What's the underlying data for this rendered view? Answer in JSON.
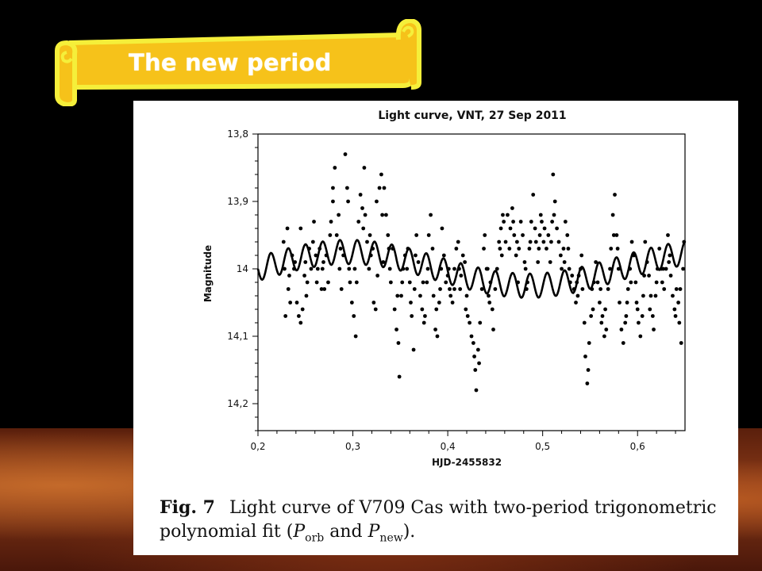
{
  "slide": {
    "title": "The new period"
  },
  "figure": {
    "caption_label": "Fig. 7",
    "caption_line1": "Light curve of V709 Cas with two-period trigonometric",
    "caption_line2_pre": "polynomial fit (",
    "caption_porb": "P",
    "caption_porb_sub": "orb",
    "caption_and": " and ",
    "caption_pnew": "P",
    "caption_pnew_sub": "new",
    "caption_end": ")."
  },
  "chart_data": {
    "type": "scatter",
    "title": "Light curve, VNT, 27 Sep 2011",
    "xlabel": "HJD-2455832",
    "ylabel": "Magnitude",
    "xlim": [
      0.2,
      0.65
    ],
    "ylim": [
      13.8,
      14.24
    ],
    "y_inverted": true,
    "x_ticks": [
      "0,2",
      "0,3",
      "0,4",
      "0,5",
      "0,6"
    ],
    "x_tick_values": [
      0.2,
      0.3,
      0.4,
      0.5,
      0.6
    ],
    "y_ticks": [
      "13,8",
      "13,9",
      "14",
      "14,1",
      "14,2"
    ],
    "y_tick_values": [
      13.8,
      13.9,
      14.0,
      14.1,
      14.2
    ],
    "grid": false,
    "legend": "none",
    "marker_color": "#000000",
    "series": [
      {
        "type": "scatter",
        "values_xy": [
          [
            0.227,
            13.96
          ],
          [
            0.228,
            14.0
          ],
          [
            0.229,
            14.07
          ],
          [
            0.231,
            13.94
          ],
          [
            0.232,
            14.03
          ],
          [
            0.234,
            14.05
          ],
          [
            0.236,
            13.98
          ],
          [
            0.238,
            14.0
          ],
          [
            0.239,
            13.99
          ],
          [
            0.241,
            14.05
          ],
          [
            0.243,
            14.07
          ],
          [
            0.245,
            14.08
          ],
          [
            0.247,
            14.06
          ],
          [
            0.249,
            14.01
          ],
          [
            0.25,
            13.99
          ],
          [
            0.252,
            14.02
          ],
          [
            0.254,
            13.97
          ],
          [
            0.256,
            14.0
          ],
          [
            0.258,
            13.96
          ],
          [
            0.259,
            13.93
          ],
          [
            0.261,
            13.98
          ],
          [
            0.263,
            14.0
          ],
          [
            0.265,
            13.97
          ],
          [
            0.267,
            14.03
          ],
          [
            0.268,
            14.0
          ],
          [
            0.27,
            14.03
          ],
          [
            0.272,
            13.98
          ],
          [
            0.274,
            14.02
          ],
          [
            0.276,
            13.95
          ],
          [
            0.277,
            13.93
          ],
          [
            0.279,
            13.9
          ],
          [
            0.281,
            13.85
          ],
          [
            0.283,
            13.95
          ],
          [
            0.285,
            13.92
          ],
          [
            0.286,
            14.0
          ],
          [
            0.288,
            14.03
          ],
          [
            0.29,
            13.98
          ],
          [
            0.292,
            13.83
          ],
          [
            0.294,
            13.88
          ],
          [
            0.295,
            13.9
          ],
          [
            0.297,
            14.02
          ],
          [
            0.299,
            14.05
          ],
          [
            0.301,
            14.07
          ],
          [
            0.303,
            14.1
          ],
          [
            0.304,
            14.02
          ],
          [
            0.306,
            13.93
          ],
          [
            0.308,
            13.89
          ],
          [
            0.31,
            13.91
          ],
          [
            0.312,
            13.85
          ],
          [
            0.313,
            13.92
          ],
          [
            0.315,
            13.96
          ],
          [
            0.317,
            14.0
          ],
          [
            0.319,
            13.98
          ],
          [
            0.321,
            13.97
          ],
          [
            0.322,
            14.05
          ],
          [
            0.324,
            14.06
          ],
          [
            0.326,
            14.01
          ],
          [
            0.328,
            13.88
          ],
          [
            0.33,
            13.86
          ],
          [
            0.331,
            13.92
          ],
          [
            0.333,
            13.88
          ],
          [
            0.335,
            13.92
          ],
          [
            0.337,
            13.95
          ],
          [
            0.339,
            14.0
          ],
          [
            0.34,
            14.02
          ],
          [
            0.342,
            13.97
          ],
          [
            0.344,
            14.06
          ],
          [
            0.346,
            14.09
          ],
          [
            0.348,
            14.11
          ],
          [
            0.349,
            14.16
          ],
          [
            0.351,
            14.04
          ],
          [
            0.353,
            14.0
          ],
          [
            0.355,
            13.98
          ],
          [
            0.357,
            14.0
          ],
          [
            0.358,
            13.97
          ],
          [
            0.36,
            14.02
          ],
          [
            0.362,
            14.07
          ],
          [
            0.364,
            14.12
          ],
          [
            0.366,
            13.98
          ],
          [
            0.367,
            13.95
          ],
          [
            0.369,
            13.99
          ],
          [
            0.371,
            14.04
          ],
          [
            0.373,
            14.06
          ],
          [
            0.375,
            14.08
          ],
          [
            0.376,
            14.07
          ],
          [
            0.378,
            14.02
          ],
          [
            0.38,
            13.95
          ],
          [
            0.382,
            13.92
          ],
          [
            0.384,
            13.97
          ],
          [
            0.385,
            14.04
          ],
          [
            0.387,
            14.09
          ],
          [
            0.389,
            14.1
          ],
          [
            0.391,
            14.05
          ],
          [
            0.393,
            14.0
          ],
          [
            0.394,
            13.94
          ],
          [
            0.396,
            13.98
          ],
          [
            0.398,
            14.02
          ],
          [
            0.4,
            14.01
          ],
          [
            0.402,
            14.03
          ],
          [
            0.403,
            14.04
          ],
          [
            0.405,
            14.05
          ],
          [
            0.407,
            14.03
          ],
          [
            0.409,
            13.97
          ],
          [
            0.411,
            13.96
          ],
          [
            0.412,
            14.0
          ],
          [
            0.414,
            14.01
          ],
          [
            0.416,
            13.98
          ],
          [
            0.418,
            13.99
          ],
          [
            0.42,
            14.04
          ],
          [
            0.421,
            14.07
          ],
          [
            0.423,
            14.08
          ],
          [
            0.425,
            14.1
          ],
          [
            0.427,
            14.11
          ],
          [
            0.429,
            14.15
          ],
          [
            0.43,
            14.18
          ],
          [
            0.432,
            14.12
          ],
          [
            0.434,
            14.08
          ],
          [
            0.436,
            14.03
          ],
          [
            0.438,
            13.97
          ],
          [
            0.439,
            13.95
          ],
          [
            0.441,
            14.0
          ],
          [
            0.443,
            14.04
          ],
          [
            0.445,
            14.02
          ],
          [
            0.447,
            14.06
          ],
          [
            0.448,
            14.09
          ],
          [
            0.45,
            14.03
          ],
          [
            0.452,
            14.0
          ],
          [
            0.454,
            13.96
          ],
          [
            0.456,
            13.94
          ],
          [
            0.457,
            13.98
          ],
          [
            0.459,
            13.93
          ],
          [
            0.461,
            13.96
          ],
          [
            0.463,
            13.92
          ],
          [
            0.465,
            13.97
          ],
          [
            0.466,
            13.94
          ],
          [
            0.468,
            13.91
          ],
          [
            0.47,
            13.95
          ],
          [
            0.472,
            13.98
          ],
          [
            0.474,
            14.02
          ],
          [
            0.475,
            13.97
          ],
          [
            0.477,
            13.93
          ],
          [
            0.479,
            13.95
          ],
          [
            0.481,
            13.99
          ],
          [
            0.483,
            14.03
          ],
          [
            0.484,
            14.02
          ],
          [
            0.486,
            13.97
          ],
          [
            0.488,
            13.93
          ],
          [
            0.49,
            13.89
          ],
          [
            0.492,
            13.94
          ],
          [
            0.493,
            13.96
          ],
          [
            0.495,
            13.99
          ],
          [
            0.497,
            13.95
          ],
          [
            0.499,
            13.93
          ],
          [
            0.501,
            13.96
          ],
          [
            0.502,
            13.94
          ],
          [
            0.504,
            13.97
          ],
          [
            0.506,
            13.95
          ],
          [
            0.508,
            13.99
          ],
          [
            0.51,
            13.93
          ],
          [
            0.511,
            13.86
          ],
          [
            0.513,
            13.9
          ],
          [
            0.515,
            13.94
          ],
          [
            0.517,
            13.96
          ],
          [
            0.519,
            13.98
          ],
          [
            0.52,
            14.0
          ],
          [
            0.522,
            13.97
          ],
          [
            0.524,
            13.93
          ],
          [
            0.526,
            13.95
          ],
          [
            0.528,
            14.0
          ],
          [
            0.529,
            14.02
          ],
          [
            0.531,
            14.01
          ],
          [
            0.533,
            14.03
          ],
          [
            0.535,
            14.05
          ],
          [
            0.537,
            14.04
          ],
          [
            0.538,
            14.01
          ],
          [
            0.54,
            14.0
          ],
          [
            0.542,
            14.03
          ],
          [
            0.544,
            14.08
          ],
          [
            0.545,
            14.13
          ],
          [
            0.547,
            14.17
          ],
          [
            0.549,
            14.11
          ],
          [
            0.551,
            14.07
          ],
          [
            0.553,
            14.06
          ],
          [
            0.554,
            14.02
          ],
          [
            0.556,
            13.99
          ],
          [
            0.558,
            14.02
          ],
          [
            0.56,
            14.05
          ],
          [
            0.562,
            14.08
          ],
          [
            0.563,
            14.07
          ],
          [
            0.565,
            14.1
          ],
          [
            0.567,
            14.09
          ],
          [
            0.569,
            14.03
          ],
          [
            0.571,
            14.0
          ],
          [
            0.572,
            13.97
          ],
          [
            0.574,
            13.92
          ],
          [
            0.576,
            13.89
          ],
          [
            0.578,
            13.95
          ],
          [
            0.58,
            14.0
          ],
          [
            0.581,
            14.05
          ],
          [
            0.583,
            14.09
          ],
          [
            0.585,
            14.11
          ],
          [
            0.587,
            14.08
          ],
          [
            0.589,
            14.05
          ],
          [
            0.59,
            14.03
          ],
          [
            0.592,
            14.0
          ],
          [
            0.594,
            13.96
          ],
          [
            0.596,
            13.98
          ],
          [
            0.598,
            14.02
          ],
          [
            0.599,
            14.05
          ],
          [
            0.601,
            14.08
          ],
          [
            0.603,
            14.1
          ],
          [
            0.605,
            14.07
          ],
          [
            0.607,
            14.01
          ],
          [
            0.608,
            13.96
          ],
          [
            0.61,
            13.99
          ],
          [
            0.612,
            14.01
          ],
          [
            0.614,
            14.04
          ],
          [
            0.616,
            14.07
          ],
          [
            0.617,
            14.09
          ],
          [
            0.619,
            14.04
          ],
          [
            0.621,
            14.0
          ],
          [
            0.623,
            13.97
          ],
          [
            0.625,
            14.0
          ],
          [
            0.626,
            14.02
          ],
          [
            0.628,
            14.03
          ],
          [
            0.63,
            14.0
          ],
          [
            0.632,
            13.95
          ],
          [
            0.634,
            13.98
          ],
          [
            0.635,
            14.01
          ],
          [
            0.637,
            14.04
          ],
          [
            0.639,
            14.06
          ],
          [
            0.641,
            14.03
          ],
          [
            0.643,
            14.05
          ],
          [
            0.644,
            14.08
          ],
          [
            0.646,
            14.11
          ],
          [
            0.648,
            14.0
          ],
          [
            0.649,
            13.96
          ],
          [
            0.245,
            13.94
          ],
          [
            0.262,
            14.02
          ],
          [
            0.279,
            13.88
          ],
          [
            0.296,
            14.0
          ],
          [
            0.311,
            13.94
          ],
          [
            0.325,
            13.9
          ],
          [
            0.338,
            13.97
          ],
          [
            0.352,
            14.02
          ],
          [
            0.365,
            14.03
          ],
          [
            0.379,
            14.0
          ],
          [
            0.392,
            14.03
          ],
          [
            0.407,
            14.0
          ],
          [
            0.419,
            14.06
          ],
          [
            0.433,
            14.14
          ],
          [
            0.444,
            14.05
          ],
          [
            0.458,
            13.92
          ],
          [
            0.473,
            13.96
          ],
          [
            0.487,
            13.96
          ],
          [
            0.498,
            13.92
          ],
          [
            0.512,
            13.92
          ],
          [
            0.527,
            13.97
          ],
          [
            0.541,
            13.98
          ],
          [
            0.552,
            14.03
          ],
          [
            0.566,
            14.06
          ],
          [
            0.579,
            13.97
          ],
          [
            0.593,
            14.02
          ],
          [
            0.606,
            14.04
          ],
          [
            0.62,
            14.02
          ],
          [
            0.633,
            13.99
          ],
          [
            0.645,
            14.03
          ],
          [
            0.233,
            14.01
          ],
          [
            0.251,
            14.04
          ],
          [
            0.269,
            13.99
          ],
          [
            0.287,
            13.97
          ],
          [
            0.302,
            14.0
          ],
          [
            0.318,
            13.95
          ],
          [
            0.332,
            13.99
          ],
          [
            0.347,
            14.04
          ],
          [
            0.361,
            14.05
          ],
          [
            0.374,
            14.02
          ],
          [
            0.388,
            14.06
          ],
          [
            0.401,
            14.0
          ],
          [
            0.413,
            14.03
          ],
          [
            0.428,
            14.13
          ],
          [
            0.442,
            14.0
          ],
          [
            0.455,
            13.97
          ],
          [
            0.469,
            13.93
          ],
          [
            0.482,
            14.0
          ],
          [
            0.496,
            13.97
          ],
          [
            0.509,
            13.96
          ],
          [
            0.523,
            13.99
          ],
          [
            0.536,
            14.02
          ],
          [
            0.548,
            14.15
          ],
          [
            0.561,
            14.03
          ],
          [
            0.575,
            13.95
          ],
          [
            0.588,
            14.07
          ],
          [
            0.6,
            14.06
          ],
          [
            0.613,
            14.06
          ],
          [
            0.627,
            14.0
          ],
          [
            0.64,
            14.07
          ]
        ]
      },
      {
        "type": "line",
        "description": "two-period trigonometric polynomial fit",
        "mean": 14.0,
        "trend_amplitude": 0.025,
        "trend_period": 0.38,
        "oscillation_amplitude": 0.018,
        "oscillation_period": 0.0182
      }
    ]
  }
}
